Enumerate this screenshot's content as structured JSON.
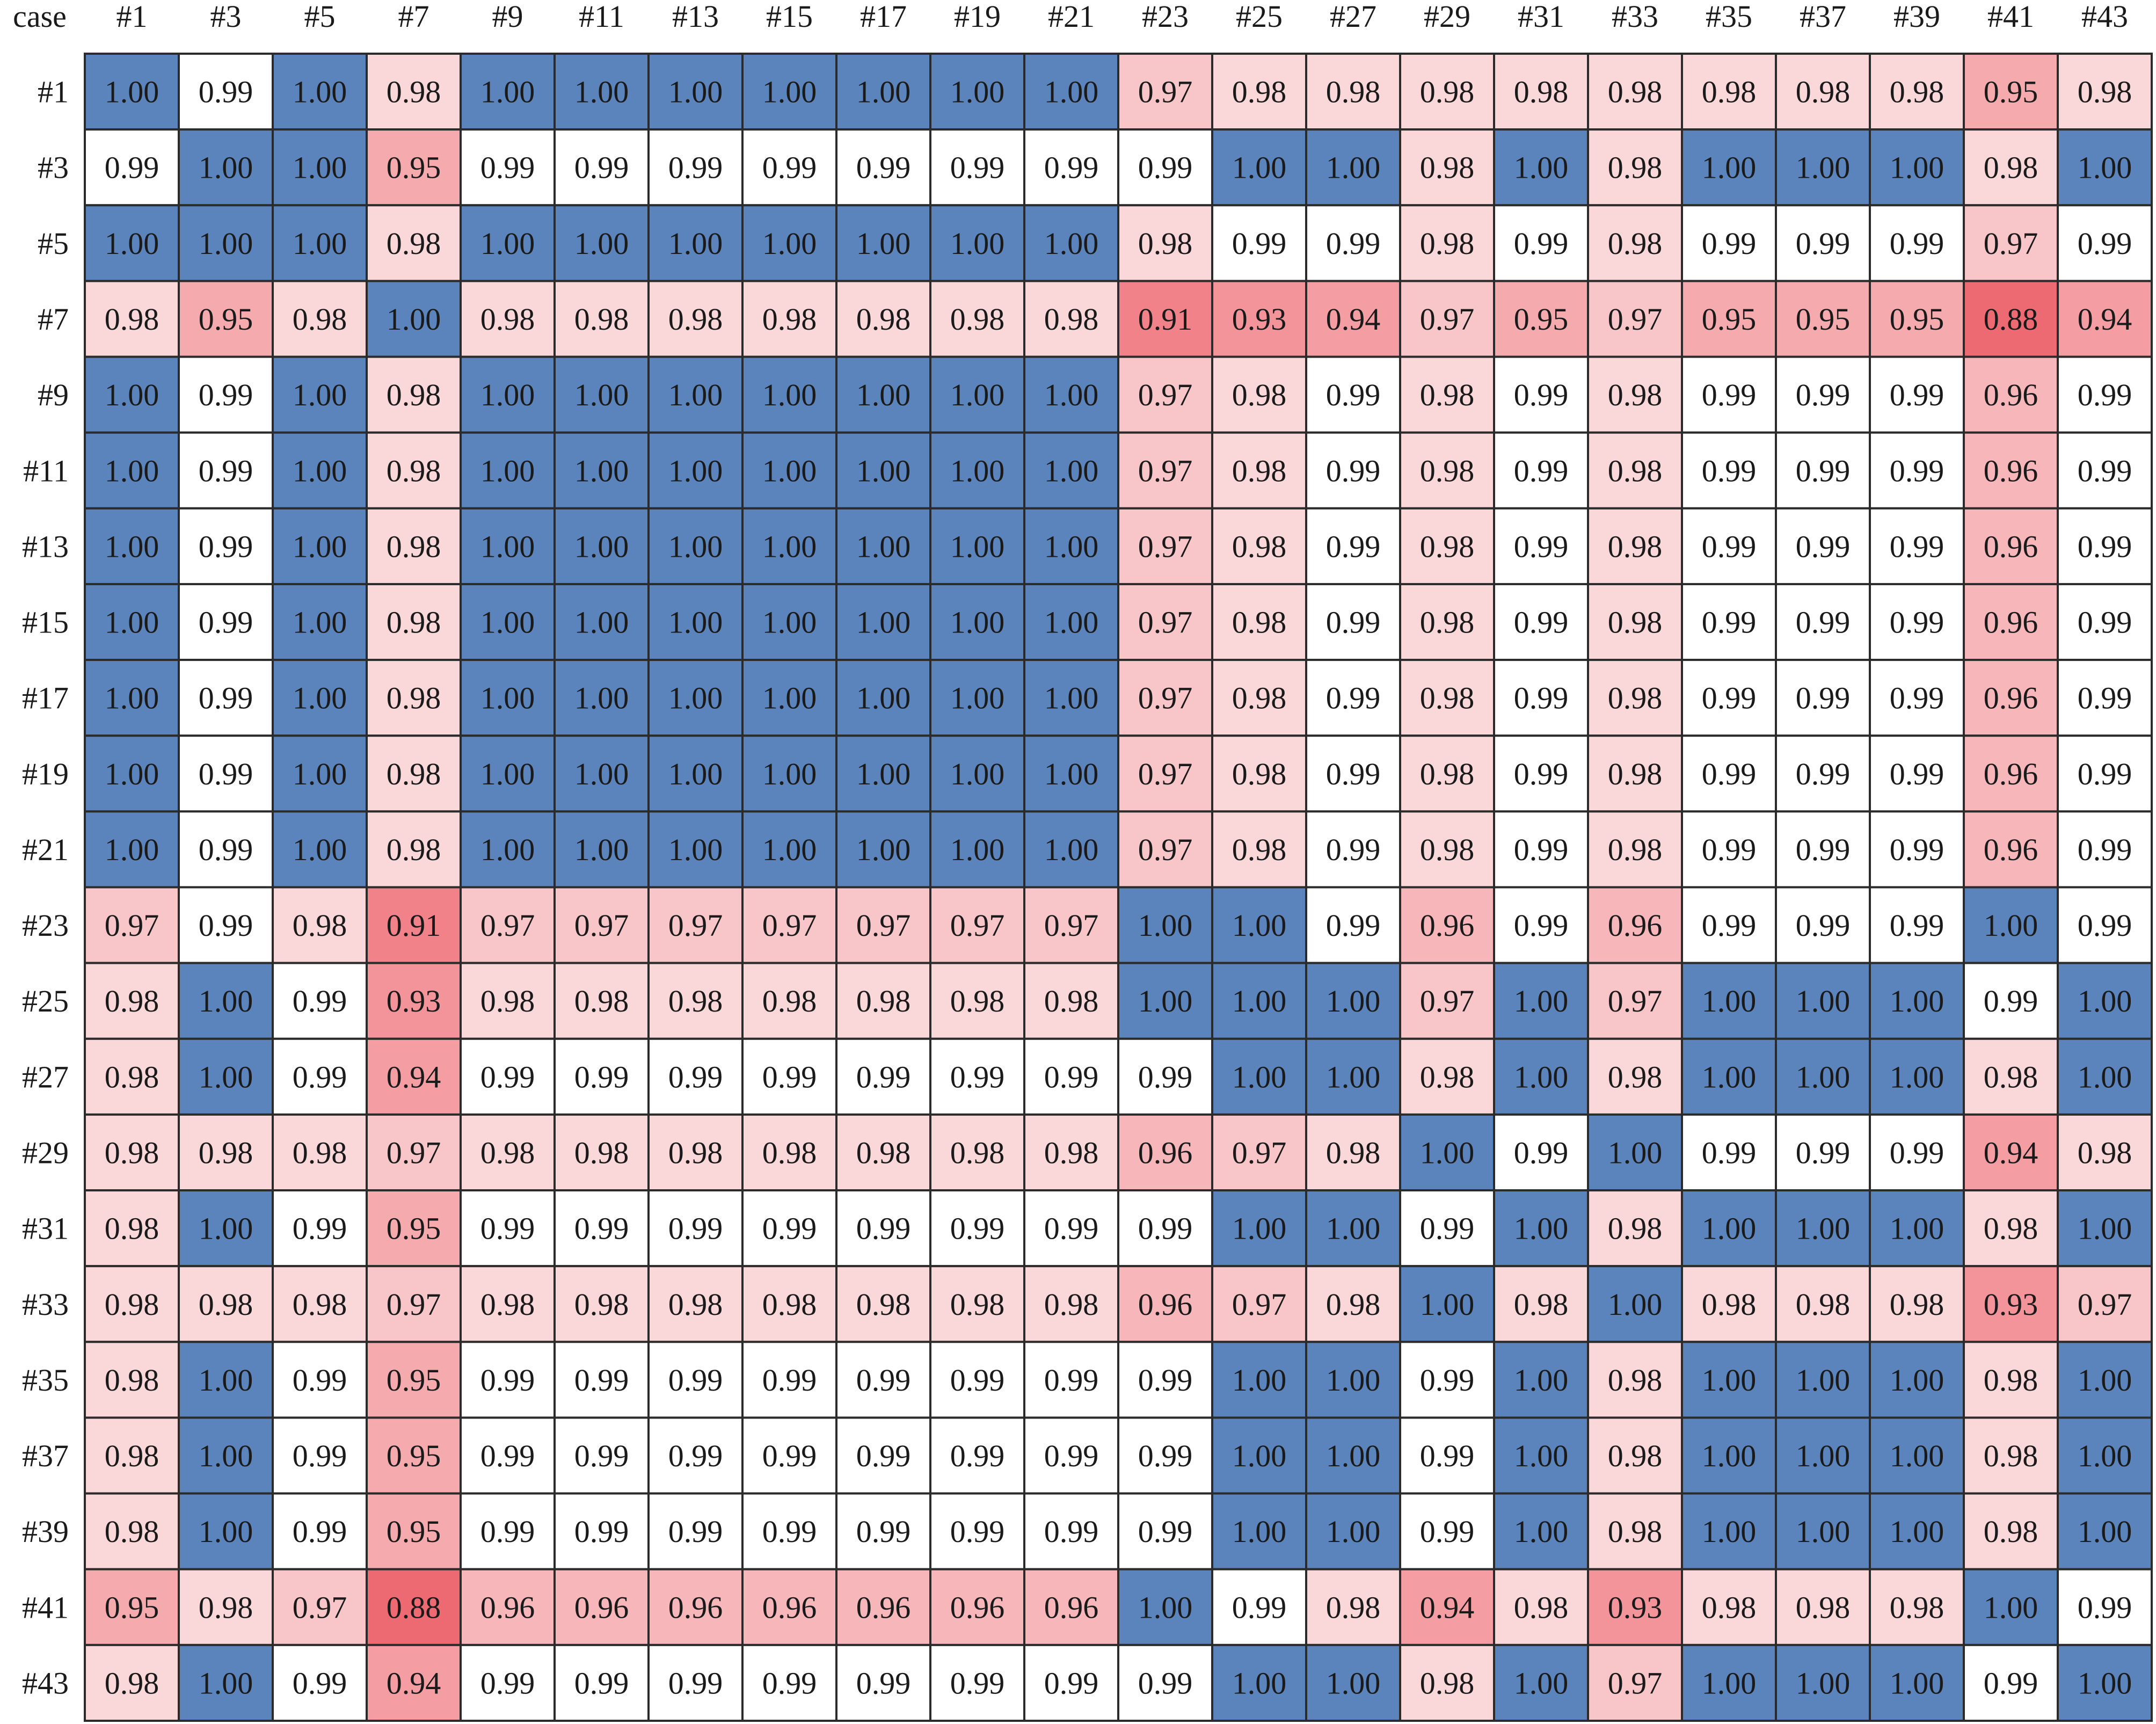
{
  "chart_data": {
    "type": "heatmap",
    "corner_label": "case",
    "x_labels": [
      "#1",
      "#3",
      "#5",
      "#7",
      "#9",
      "#11",
      "#13",
      "#15",
      "#17",
      "#19",
      "#21",
      "#23",
      "#25",
      "#27",
      "#29",
      "#31",
      "#33",
      "#35",
      "#37",
      "#39",
      "#41",
      "#43"
    ],
    "y_labels": [
      "#1",
      "#3",
      "#5",
      "#7",
      "#9",
      "#11",
      "#13",
      "#15",
      "#17",
      "#19",
      "#21",
      "#23",
      "#25",
      "#27",
      "#29",
      "#31",
      "#33",
      "#35",
      "#37",
      "#39",
      "#41",
      "#43"
    ],
    "values": [
      [
        1.0,
        0.99,
        1.0,
        0.98,
        1.0,
        1.0,
        1.0,
        1.0,
        1.0,
        1.0,
        1.0,
        0.97,
        0.98,
        0.98,
        0.98,
        0.98,
        0.98,
        0.98,
        0.98,
        0.98,
        0.95,
        0.98
      ],
      [
        0.99,
        1.0,
        1.0,
        0.95,
        0.99,
        0.99,
        0.99,
        0.99,
        0.99,
        0.99,
        0.99,
        0.99,
        1.0,
        1.0,
        0.98,
        1.0,
        0.98,
        1.0,
        1.0,
        1.0,
        0.98,
        1.0
      ],
      [
        1.0,
        1.0,
        1.0,
        0.98,
        1.0,
        1.0,
        1.0,
        1.0,
        1.0,
        1.0,
        1.0,
        0.98,
        0.99,
        0.99,
        0.98,
        0.99,
        0.98,
        0.99,
        0.99,
        0.99,
        0.97,
        0.99
      ],
      [
        0.98,
        0.95,
        0.98,
        1.0,
        0.98,
        0.98,
        0.98,
        0.98,
        0.98,
        0.98,
        0.98,
        0.91,
        0.93,
        0.94,
        0.97,
        0.95,
        0.97,
        0.95,
        0.95,
        0.95,
        0.88,
        0.94
      ],
      [
        1.0,
        0.99,
        1.0,
        0.98,
        1.0,
        1.0,
        1.0,
        1.0,
        1.0,
        1.0,
        1.0,
        0.97,
        0.98,
        0.99,
        0.98,
        0.99,
        0.98,
        0.99,
        0.99,
        0.99,
        0.96,
        0.99
      ],
      [
        1.0,
        0.99,
        1.0,
        0.98,
        1.0,
        1.0,
        1.0,
        1.0,
        1.0,
        1.0,
        1.0,
        0.97,
        0.98,
        0.99,
        0.98,
        0.99,
        0.98,
        0.99,
        0.99,
        0.99,
        0.96,
        0.99
      ],
      [
        1.0,
        0.99,
        1.0,
        0.98,
        1.0,
        1.0,
        1.0,
        1.0,
        1.0,
        1.0,
        1.0,
        0.97,
        0.98,
        0.99,
        0.98,
        0.99,
        0.98,
        0.99,
        0.99,
        0.99,
        0.96,
        0.99
      ],
      [
        1.0,
        0.99,
        1.0,
        0.98,
        1.0,
        1.0,
        1.0,
        1.0,
        1.0,
        1.0,
        1.0,
        0.97,
        0.98,
        0.99,
        0.98,
        0.99,
        0.98,
        0.99,
        0.99,
        0.99,
        0.96,
        0.99
      ],
      [
        1.0,
        0.99,
        1.0,
        0.98,
        1.0,
        1.0,
        1.0,
        1.0,
        1.0,
        1.0,
        1.0,
        0.97,
        0.98,
        0.99,
        0.98,
        0.99,
        0.98,
        0.99,
        0.99,
        0.99,
        0.96,
        0.99
      ],
      [
        1.0,
        0.99,
        1.0,
        0.98,
        1.0,
        1.0,
        1.0,
        1.0,
        1.0,
        1.0,
        1.0,
        0.97,
        0.98,
        0.99,
        0.98,
        0.99,
        0.98,
        0.99,
        0.99,
        0.99,
        0.96,
        0.99
      ],
      [
        1.0,
        0.99,
        1.0,
        0.98,
        1.0,
        1.0,
        1.0,
        1.0,
        1.0,
        1.0,
        1.0,
        0.97,
        0.98,
        0.99,
        0.98,
        0.99,
        0.98,
        0.99,
        0.99,
        0.99,
        0.96,
        0.99
      ],
      [
        0.97,
        0.99,
        0.98,
        0.91,
        0.97,
        0.97,
        0.97,
        0.97,
        0.97,
        0.97,
        0.97,
        1.0,
        1.0,
        0.99,
        0.96,
        0.99,
        0.96,
        0.99,
        0.99,
        0.99,
        1.0,
        0.99
      ],
      [
        0.98,
        1.0,
        0.99,
        0.93,
        0.98,
        0.98,
        0.98,
        0.98,
        0.98,
        0.98,
        0.98,
        1.0,
        1.0,
        1.0,
        0.97,
        1.0,
        0.97,
        1.0,
        1.0,
        1.0,
        0.99,
        1.0
      ],
      [
        0.98,
        1.0,
        0.99,
        0.94,
        0.99,
        0.99,
        0.99,
        0.99,
        0.99,
        0.99,
        0.99,
        0.99,
        1.0,
        1.0,
        0.98,
        1.0,
        0.98,
        1.0,
        1.0,
        1.0,
        0.98,
        1.0
      ],
      [
        0.98,
        0.98,
        0.98,
        0.97,
        0.98,
        0.98,
        0.98,
        0.98,
        0.98,
        0.98,
        0.98,
        0.96,
        0.97,
        0.98,
        1.0,
        0.99,
        1.0,
        0.99,
        0.99,
        0.99,
        0.94,
        0.98
      ],
      [
        0.98,
        1.0,
        0.99,
        0.95,
        0.99,
        0.99,
        0.99,
        0.99,
        0.99,
        0.99,
        0.99,
        0.99,
        1.0,
        1.0,
        0.99,
        1.0,
        0.98,
        1.0,
        1.0,
        1.0,
        0.98,
        1.0
      ],
      [
        0.98,
        0.98,
        0.98,
        0.97,
        0.98,
        0.98,
        0.98,
        0.98,
        0.98,
        0.98,
        0.98,
        0.96,
        0.97,
        0.98,
        1.0,
        0.98,
        1.0,
        0.98,
        0.98,
        0.98,
        0.93,
        0.97
      ],
      [
        0.98,
        1.0,
        0.99,
        0.95,
        0.99,
        0.99,
        0.99,
        0.99,
        0.99,
        0.99,
        0.99,
        0.99,
        1.0,
        1.0,
        0.99,
        1.0,
        0.98,
        1.0,
        1.0,
        1.0,
        0.98,
        1.0
      ],
      [
        0.98,
        1.0,
        0.99,
        0.95,
        0.99,
        0.99,
        0.99,
        0.99,
        0.99,
        0.99,
        0.99,
        0.99,
        1.0,
        1.0,
        0.99,
        1.0,
        0.98,
        1.0,
        1.0,
        1.0,
        0.98,
        1.0
      ],
      [
        0.98,
        1.0,
        0.99,
        0.95,
        0.99,
        0.99,
        0.99,
        0.99,
        0.99,
        0.99,
        0.99,
        0.99,
        1.0,
        1.0,
        0.99,
        1.0,
        0.98,
        1.0,
        1.0,
        1.0,
        0.98,
        1.0
      ],
      [
        0.95,
        0.98,
        0.97,
        0.88,
        0.96,
        0.96,
        0.96,
        0.96,
        0.96,
        0.96,
        0.96,
        1.0,
        0.99,
        0.98,
        0.94,
        0.98,
        0.93,
        0.98,
        0.98,
        0.98,
        1.0,
        0.99
      ],
      [
        0.98,
        1.0,
        0.99,
        0.94,
        0.99,
        0.99,
        0.99,
        0.99,
        0.99,
        0.99,
        0.99,
        0.99,
        1.0,
        1.0,
        0.98,
        1.0,
        0.97,
        1.0,
        1.0,
        1.0,
        0.99,
        1.0
      ]
    ],
    "value_format": "2 decimals",
    "color_scale": {
      "low_color": "#ee6a72",
      "mid_color": "#ffffff",
      "high_color": "#5a84bb",
      "cell_border_color": "#2b2b2b"
    }
  }
}
